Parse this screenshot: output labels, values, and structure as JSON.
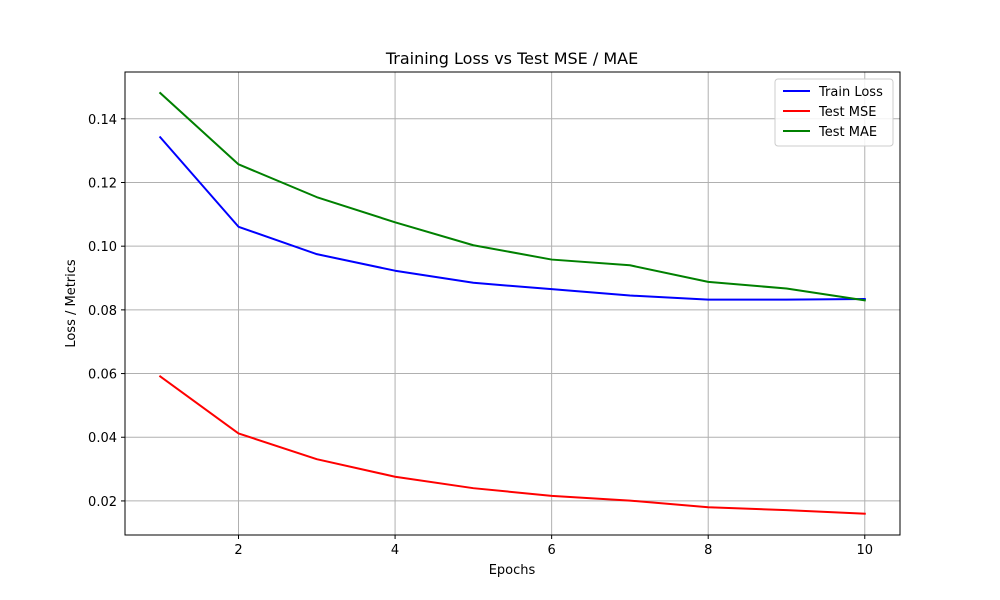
{
  "chart_data": {
    "type": "line",
    "title": "Training Loss vs Test MSE / MAE",
    "xlabel": "Epochs",
    "ylabel": "Loss / Metrics",
    "x": [
      1,
      2,
      3,
      4,
      5,
      6,
      7,
      8,
      9,
      10
    ],
    "xlim": [
      0.55,
      10.45
    ],
    "ylim": [
      0.0093,
      0.1547
    ],
    "xticks": [
      2,
      4,
      6,
      8,
      10
    ],
    "yticks": [
      0.02,
      0.04,
      0.06,
      0.08,
      0.1,
      0.12,
      0.14
    ],
    "ytick_labels": [
      "0.02",
      "0.04",
      "0.06",
      "0.08",
      "0.10",
      "0.12",
      "0.14"
    ],
    "grid": true,
    "legend_position": "top-right",
    "series": [
      {
        "name": "Train Loss",
        "color": "#0000ff",
        "values": [
          0.1342,
          0.1061,
          0.0975,
          0.0923,
          0.0885,
          0.0865,
          0.0845,
          0.0832,
          0.0832,
          0.0834
        ]
      },
      {
        "name": "Test MSE",
        "color": "#ff0000",
        "values": [
          0.0591,
          0.0412,
          0.0331,
          0.0276,
          0.024,
          0.0216,
          0.0201,
          0.018,
          0.0171,
          0.016
        ]
      },
      {
        "name": "Test MAE",
        "color": "#008000",
        "values": [
          0.1481,
          0.1257,
          0.1154,
          0.1075,
          0.1003,
          0.0958,
          0.094,
          0.0888,
          0.0867,
          0.083
        ]
      }
    ]
  }
}
